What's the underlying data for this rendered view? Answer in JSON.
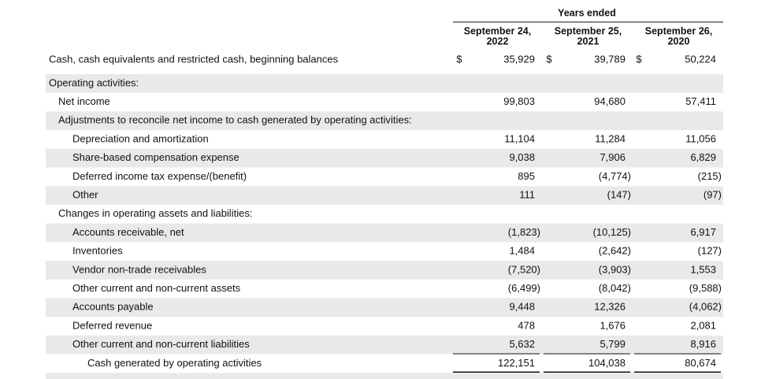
{
  "header": {
    "title": "Years ended",
    "columns": [
      [
        "September 24,",
        "2022"
      ],
      [
        "September 25,",
        "2021"
      ],
      [
        "September 26,",
        "2020"
      ]
    ]
  },
  "table": {
    "rows": [
      {
        "label": "Cash, cash equivalents and restricted cash, beginning balances",
        "currency": [
          "$",
          "$",
          "$"
        ],
        "values": [
          "35,929",
          "39,789",
          "50,224"
        ]
      },
      {
        "label": "Operating activities:",
        "values": []
      },
      {
        "label": "Net income",
        "values": [
          "99,803",
          "94,680",
          "57,411"
        ]
      },
      {
        "label": "Adjustments to reconcile net income to cash generated by operating activities:",
        "values": []
      },
      {
        "label": "Depreciation and amortization",
        "values": [
          "11,104",
          "11,284",
          "11,056"
        ]
      },
      {
        "label": "Share-based compensation expense",
        "values": [
          "9,038",
          "7,906",
          "6,829"
        ]
      },
      {
        "label": "Deferred income tax expense/(benefit)",
        "values": [
          "895",
          "(4,774)",
          "(215)"
        ]
      },
      {
        "label": "Other",
        "values": [
          "111",
          "(147)",
          "(97)"
        ]
      },
      {
        "label": "Changes in operating assets and liabilities:",
        "values": []
      },
      {
        "label": "Accounts receivable, net",
        "values": [
          "(1,823)",
          "(10,125)",
          "6,917"
        ]
      },
      {
        "label": "Inventories",
        "values": [
          "1,484",
          "(2,642)",
          "(127)"
        ]
      },
      {
        "label": "Vendor non-trade receivables",
        "values": [
          "(7,520)",
          "(3,903)",
          "1,553"
        ]
      },
      {
        "label": "Other current and non-current assets",
        "values": [
          "(6,499)",
          "(8,042)",
          "(9,588)"
        ]
      },
      {
        "label": "Accounts payable",
        "values": [
          "9,448",
          "12,326",
          "(4,062)"
        ]
      },
      {
        "label": "Deferred revenue",
        "values": [
          "478",
          "1,676",
          "2,081"
        ]
      },
      {
        "label": "Other current and non-current liabilities",
        "values": [
          "5,632",
          "5,799",
          "8,916"
        ]
      },
      {
        "label": "Cash generated by operating activities",
        "values": [
          "122,151",
          "104,038",
          "80,674"
        ]
      }
    ]
  }
}
